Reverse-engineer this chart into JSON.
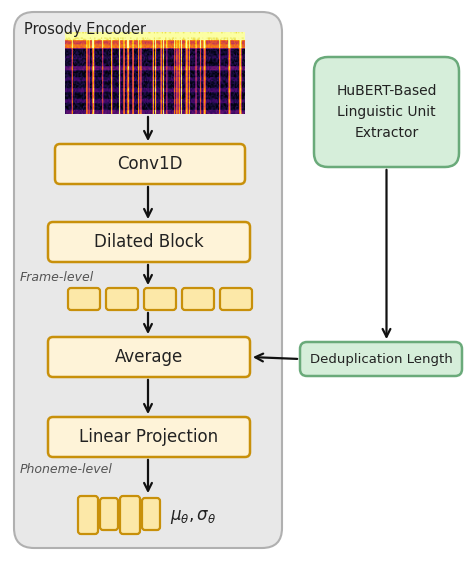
{
  "bg_inner": "#e8e8e8",
  "box_orange_fill": "#fef3d8",
  "box_orange_edge": "#c8900a",
  "box_green_fill": "#d6eeda",
  "box_green_edge": "#6aaa7a",
  "small_rect_fill": "#fce8a8",
  "small_rect_edge": "#c8900a",
  "arrow_color": "#111111",
  "text_color": "#222222",
  "label_color": "#555555",
  "prosody_label": "Prosody Encoder",
  "conv1d_label": "Conv1D",
  "dilated_label": "Dilated Block",
  "frame_label": "Frame-level",
  "average_label": "Average",
  "linear_label": "Linear Projection",
  "phoneme_label": "Phoneme-level",
  "hubert_label": "HuBERT-Based\nLinguistic Unit\nExtractor",
  "dedup_label": "Deduplication Length",
  "mu_sigma_label": "$\\mu_\\theta, \\sigma_\\theta$"
}
